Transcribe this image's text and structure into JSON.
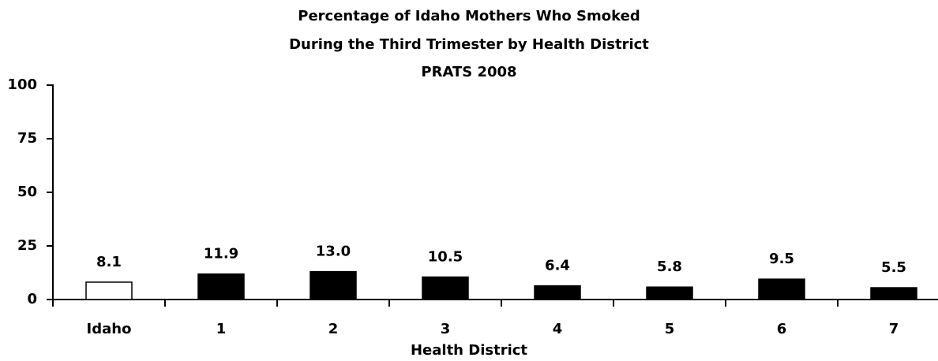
{
  "chart_data": {
    "type": "bar",
    "title": [
      "Percentage of Idaho Mothers Who Smoked",
      "During the Third Trimester by Health District",
      "PRATS 2008"
    ],
    "x_label": "Health District",
    "categories": [
      "Idaho",
      "1",
      "2",
      "3",
      "4",
      "5",
      "6",
      "7"
    ],
    "values": [
      8.1,
      11.9,
      13,
      10.5,
      6.4,
      5.8,
      9.5,
      5.5
    ],
    "value_labels": [
      "8.1",
      "11.9",
      "13.0",
      "10.5",
      "6.4",
      "5.8",
      "9.5",
      "5.5"
    ],
    "colors": [
      "#ffffff",
      "#000000",
      "#000000",
      "#000000",
      "#000000",
      "#000000",
      "#000000",
      "#000000"
    ],
    "ylim": [
      0,
      100
    ],
    "yticks": [
      0,
      25,
      50,
      75,
      100
    ],
    "grid": false
  }
}
